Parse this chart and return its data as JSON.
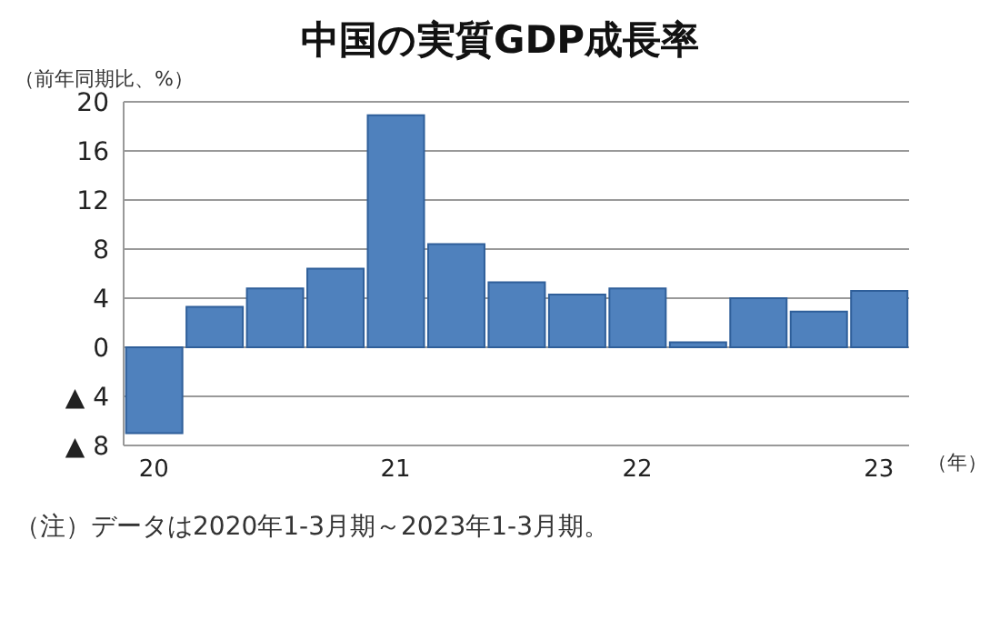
{
  "chart_data": {
    "type": "bar",
    "title": "中国の実質GDP成長率",
    "ylabel": "（前年同期比、%）",
    "xlabel": "（年）",
    "categories": [
      "20",
      null,
      null,
      null,
      "21",
      null,
      null,
      null,
      "22",
      null,
      null,
      null,
      "23"
    ],
    "values": [
      -7.0,
      3.3,
      4.8,
      6.4,
      18.9,
      8.4,
      5.3,
      4.3,
      4.8,
      0.4,
      4.0,
      2.9,
      4.6
    ],
    "color": "#4f81bd",
    "ylim": [
      -8,
      20
    ],
    "yticks": [
      20,
      16,
      12,
      8,
      4,
      0,
      {
        "value": -4,
        "label": "▲ 4"
      },
      {
        "value": -8,
        "label": "▲ 8"
      }
    ],
    "grid": "y",
    "annotations": [
      "（注）データは2020年1-3月期～2023年1-3月期。"
    ]
  }
}
